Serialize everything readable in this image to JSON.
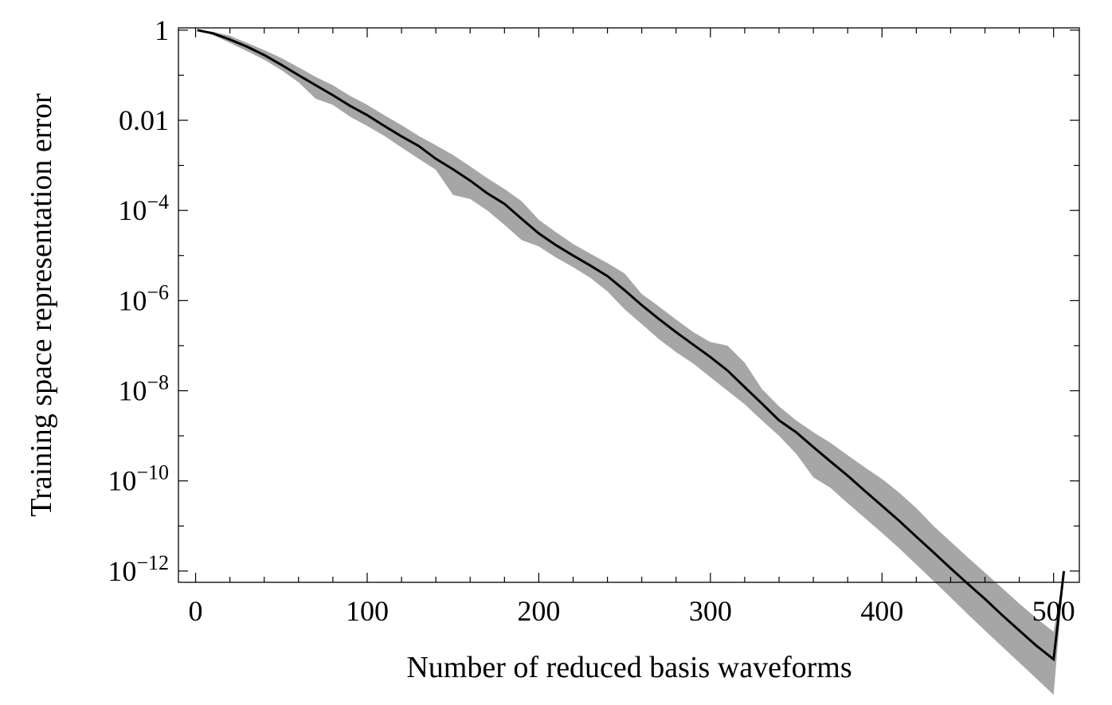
{
  "chart_data": {
    "type": "line",
    "title": "",
    "xlabel": "Number of reduced basis waveforms",
    "ylabel": "Training space representation error",
    "xlim": [
      -10,
      515
    ],
    "ylim_log10": [
      -12.25,
      0.05
    ],
    "y_scale": "log",
    "grid": false,
    "x_ticks": [
      0,
      100,
      200,
      300,
      400,
      500
    ],
    "x_tick_labels": [
      "0",
      "100",
      "200",
      "300",
      "400",
      "500"
    ],
    "y_ticks_log10": [
      0,
      -2,
      -4,
      -6,
      -8,
      -10,
      -12
    ],
    "y_tick_labels": [
      {
        "base": "1",
        "exp": ""
      },
      {
        "base": "0.01",
        "exp": ""
      },
      {
        "base": "10",
        "exp": "−4"
      },
      {
        "base": "10",
        "exp": "−6"
      },
      {
        "base": "10",
        "exp": "−8"
      },
      {
        "base": "10",
        "exp": "−10"
      },
      {
        "base": "10",
        "exp": "−12"
      }
    ],
    "colors": {
      "line": "#000000",
      "band": "#a6a6a6",
      "axis": "#000000"
    },
    "series": [
      {
        "kind": "line",
        "x": [
          1,
          10,
          20,
          30,
          40,
          50,
          60,
          70,
          80,
          90,
          100,
          110,
          120,
          130,
          140,
          150,
          160,
          170,
          180,
          190,
          200,
          210,
          220,
          230,
          240,
          250,
          260,
          270,
          280,
          290,
          300,
          310,
          320,
          330,
          340,
          350,
          360,
          370,
          380,
          390,
          400,
          410,
          420,
          430,
          440,
          450,
          460,
          470,
          480,
          490,
          500,
          506
        ],
        "y": [
          1,
          0.85,
          0.62,
          0.43,
          0.28,
          0.17,
          0.1,
          0.06,
          0.036,
          0.021,
          0.013,
          0.0075,
          0.0044,
          0.0027,
          0.0014,
          0.00082,
          0.00046,
          0.00024,
          0.00014,
          6.5e-05,
          3.1e-05,
          1.7e-05,
          1e-05,
          6e-06,
          3.5e-06,
          1.7e-06,
          7.9e-07,
          3.9e-07,
          2e-07,
          1.05e-07,
          5.6e-08,
          2.8e-08,
          1.2e-08,
          5.2e-09,
          2.2e-09,
          1.2e-09,
          5.6e-10,
          2.7e-10,
          1.3e-10,
          6e-11,
          2.8e-11,
          1.3e-11,
          5.8e-12,
          2.6e-12,
          1.15e-12,
          5.2e-13,
          2.4e-13,
          1.05e-13,
          4.8e-14,
          2.2e-14,
          1.1e-14,
          1e-12
        ]
      },
      {
        "kind": "band",
        "x": [
          1,
          10,
          20,
          30,
          40,
          50,
          60,
          70,
          80,
          90,
          100,
          110,
          120,
          130,
          140,
          150,
          160,
          170,
          180,
          190,
          200,
          210,
          220,
          230,
          240,
          250,
          260,
          270,
          280,
          290,
          300,
          310,
          320,
          330,
          340,
          350,
          360,
          370,
          380,
          390,
          400,
          410,
          420,
          430,
          440,
          450,
          460,
          470,
          480,
          490,
          500,
          506
        ],
        "upper": [
          1,
          0.92,
          0.75,
          0.52,
          0.36,
          0.24,
          0.15,
          0.092,
          0.06,
          0.035,
          0.022,
          0.013,
          0.0078,
          0.0045,
          0.0028,
          0.0017,
          0.00095,
          0.00052,
          0.0003,
          0.00016,
          6.2e-05,
          3.3e-05,
          1.8e-05,
          1.1e-05,
          6.8e-06,
          4e-06,
          1.4e-06,
          7.4e-07,
          3.8e-07,
          2e-07,
          1.2e-07,
          1e-07,
          4.2e-08,
          1.1e-08,
          4.5e-09,
          2.2e-09,
          1.2e-09,
          7e-10,
          3.7e-10,
          2e-10,
          1.1e-10,
          5.5e-11,
          2.5e-11,
          1e-11,
          4.5e-12,
          2e-12,
          9.2e-13,
          4.2e-13,
          1.9e-13,
          9e-14,
          4.5e-14,
          1e-12
        ],
        "lower": [
          1,
          0.78,
          0.52,
          0.34,
          0.22,
          0.13,
          0.07,
          0.03,
          0.022,
          0.012,
          0.0075,
          0.0045,
          0.0025,
          0.0014,
          0.0008,
          0.00022,
          0.00018,
          0.0001,
          4.8e-05,
          2.2e-05,
          1.6e-05,
          9e-06,
          5.5e-06,
          3.2e-06,
          1.6e-06,
          6.4e-07,
          3e-07,
          1.4e-07,
          7.2e-08,
          4e-08,
          2e-08,
          1e-08,
          5e-09,
          2.2e-09,
          1e-09,
          4e-10,
          1.2e-10,
          7e-11,
          3.2e-11,
          1.5e-11,
          7e-12,
          3.2e-12,
          1.4e-12,
          6e-13,
          2.6e-13,
          1.1e-13,
          4.8e-14,
          2.1e-14,
          9.3e-15,
          4.1e-15,
          1.8e-15,
          1e-12
        ]
      }
    ]
  }
}
